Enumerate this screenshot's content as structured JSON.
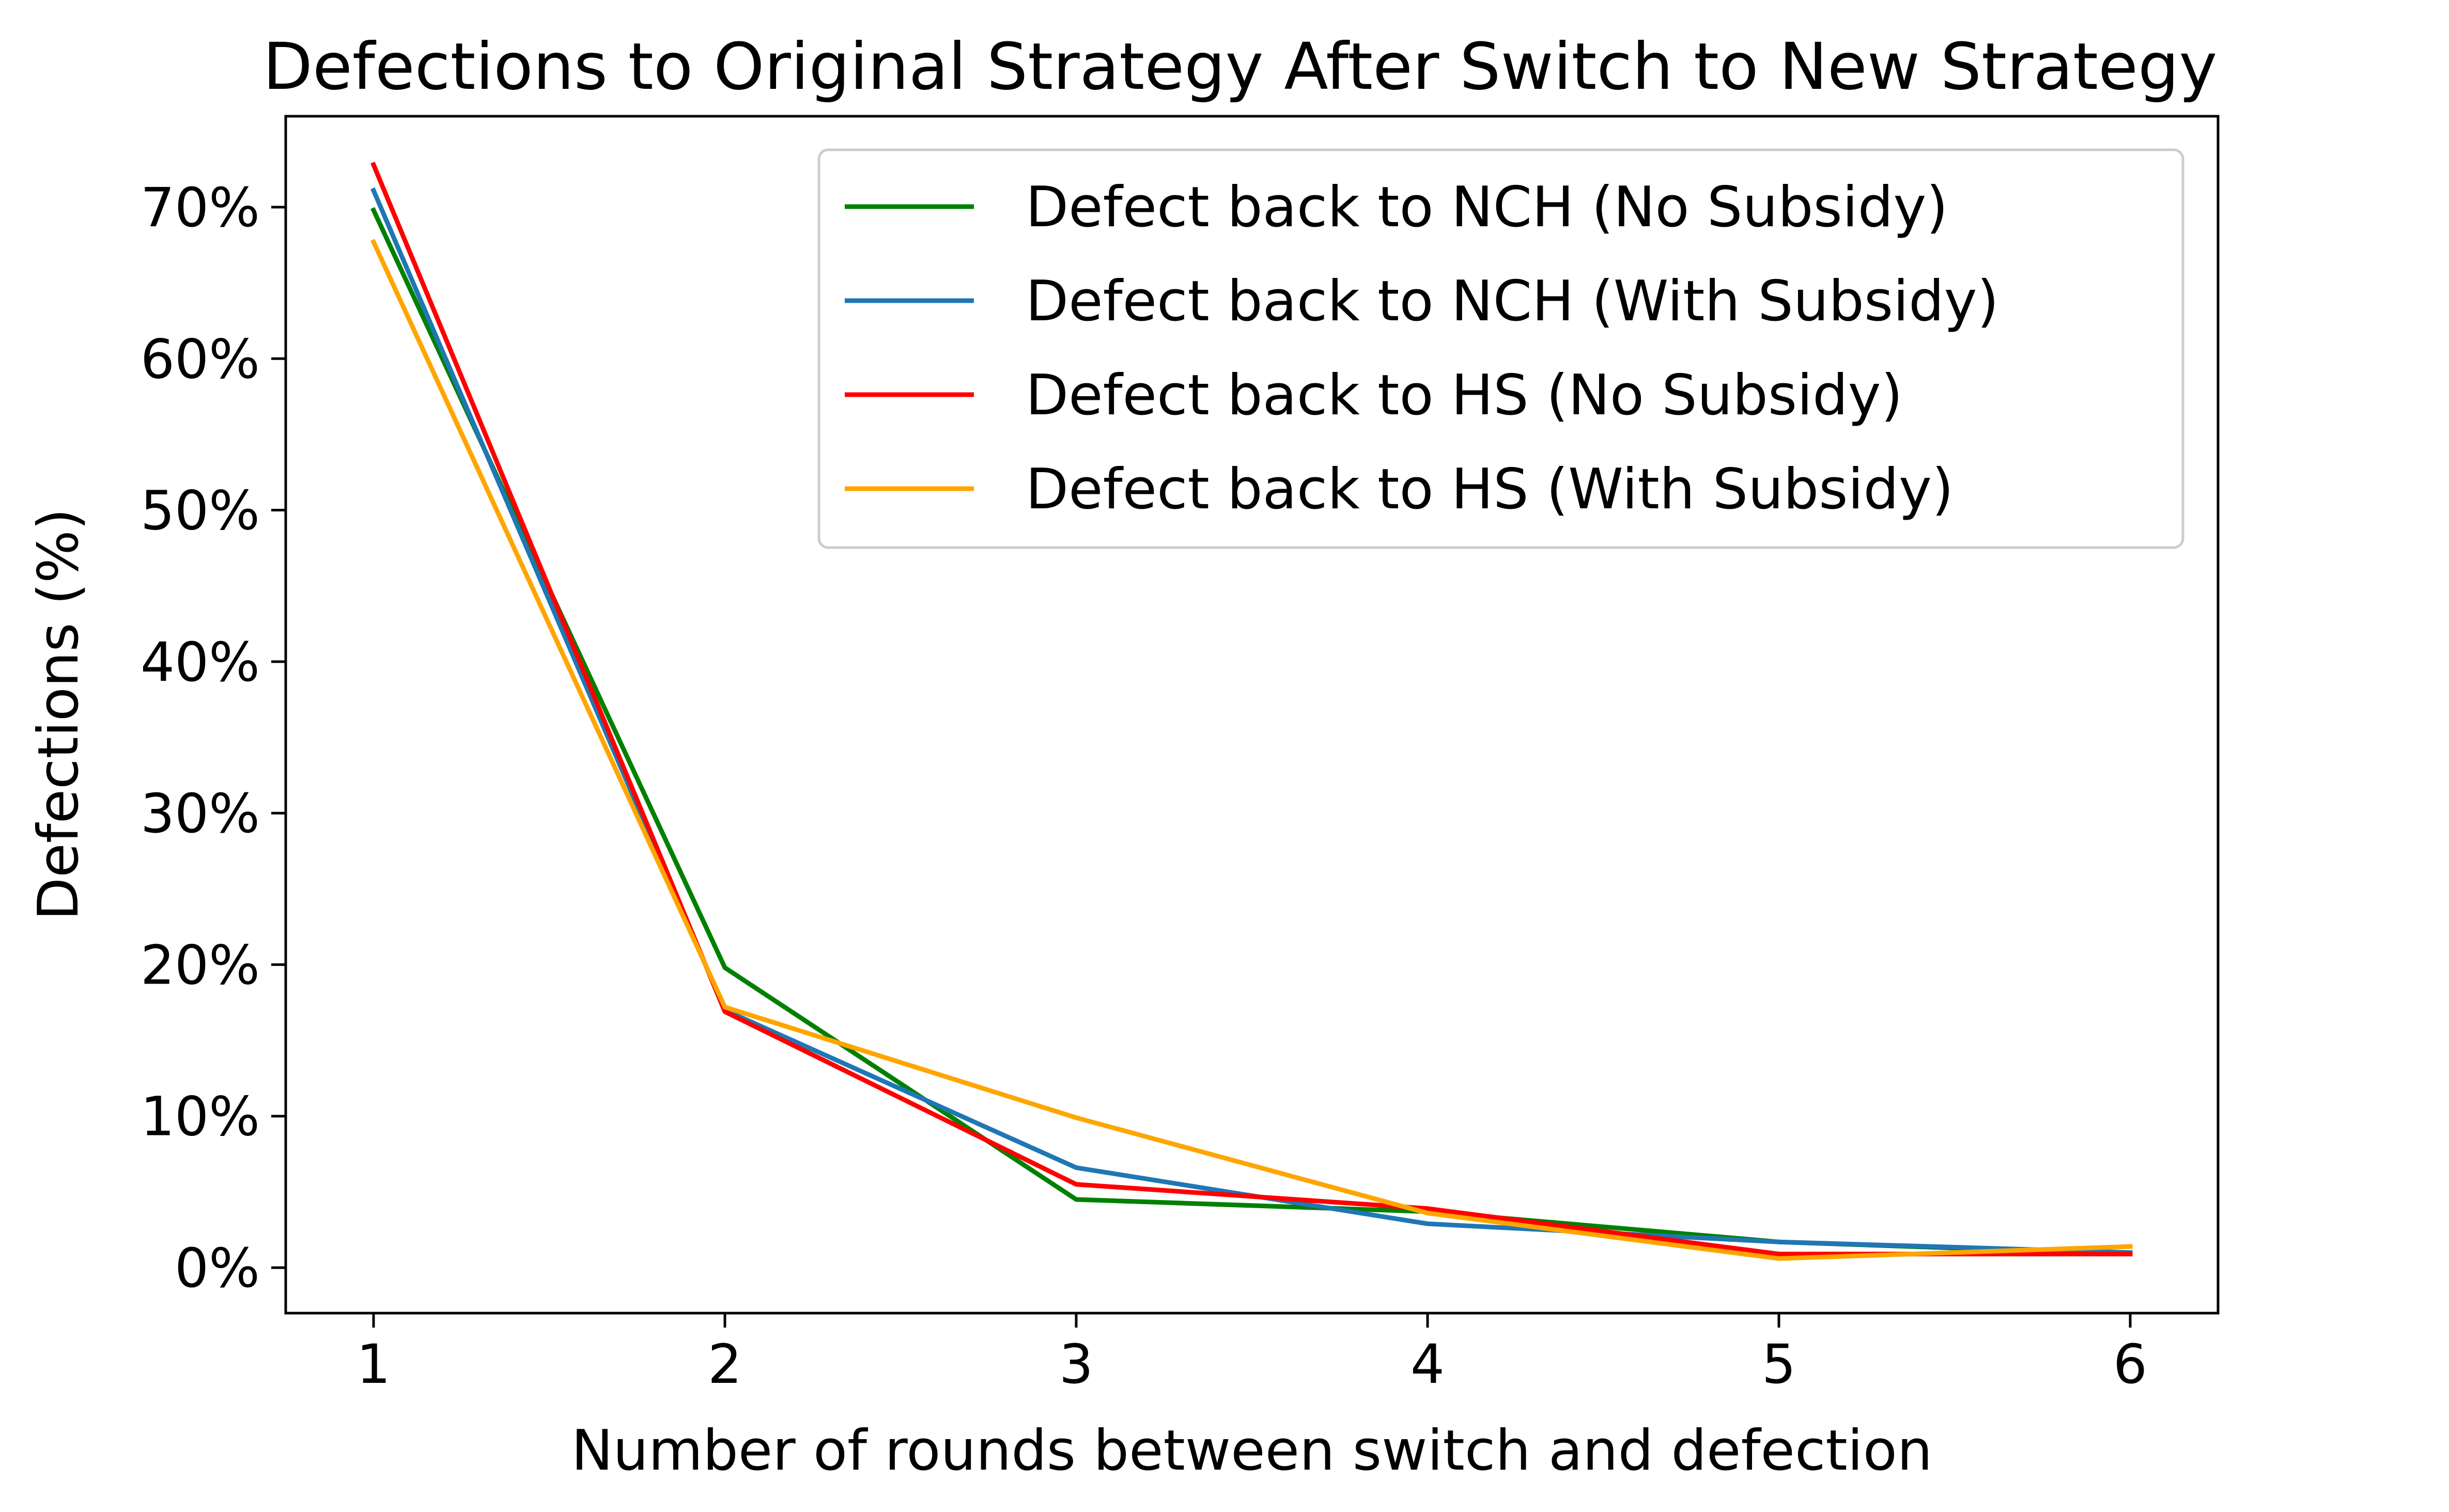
{
  "chart_data": {
    "type": "line",
    "title": "Defections to Original Strategy After Switch to New Strategy",
    "xlabel": "Number of rounds between switch and defection",
    "ylabel": "Defections (%)",
    "x": [
      1,
      2,
      3,
      4,
      5,
      6
    ],
    "x_tick_labels": [
      "1",
      "2",
      "3",
      "4",
      "5",
      "6"
    ],
    "y_ticks": [
      0,
      10,
      20,
      30,
      40,
      50,
      60,
      70
    ],
    "y_tick_labels": [
      "0%",
      "10%",
      "20%",
      "30%",
      "40%",
      "50%",
      "60%",
      "70%"
    ],
    "xlim": [
      0.75,
      6.25
    ],
    "ylim": [
      -3,
      76
    ],
    "grid": false,
    "legend_position": "top-right",
    "series": [
      {
        "name": "Defect back to NCH (No Subsidy)",
        "color": "#008000",
        "values": [
          69.8,
          19.8,
          4.5,
          3.7,
          1.7,
          0.9
        ]
      },
      {
        "name": "Defect back to NCH (With Subsidy)",
        "color": "#1f77b4",
        "values": [
          71.1,
          17.0,
          6.6,
          2.9,
          1.7,
          1.0
        ]
      },
      {
        "name": "Defect back to HS (No Subsidy)",
        "color": "#ff0000",
        "values": [
          72.8,
          16.9,
          5.5,
          3.9,
          0.9,
          0.9
        ]
      },
      {
        "name": "Defect back to HS (With Subsidy)",
        "color": "#ffa500",
        "values": [
          67.7,
          17.2,
          9.9,
          3.6,
          0.6,
          1.4
        ]
      }
    ]
  }
}
